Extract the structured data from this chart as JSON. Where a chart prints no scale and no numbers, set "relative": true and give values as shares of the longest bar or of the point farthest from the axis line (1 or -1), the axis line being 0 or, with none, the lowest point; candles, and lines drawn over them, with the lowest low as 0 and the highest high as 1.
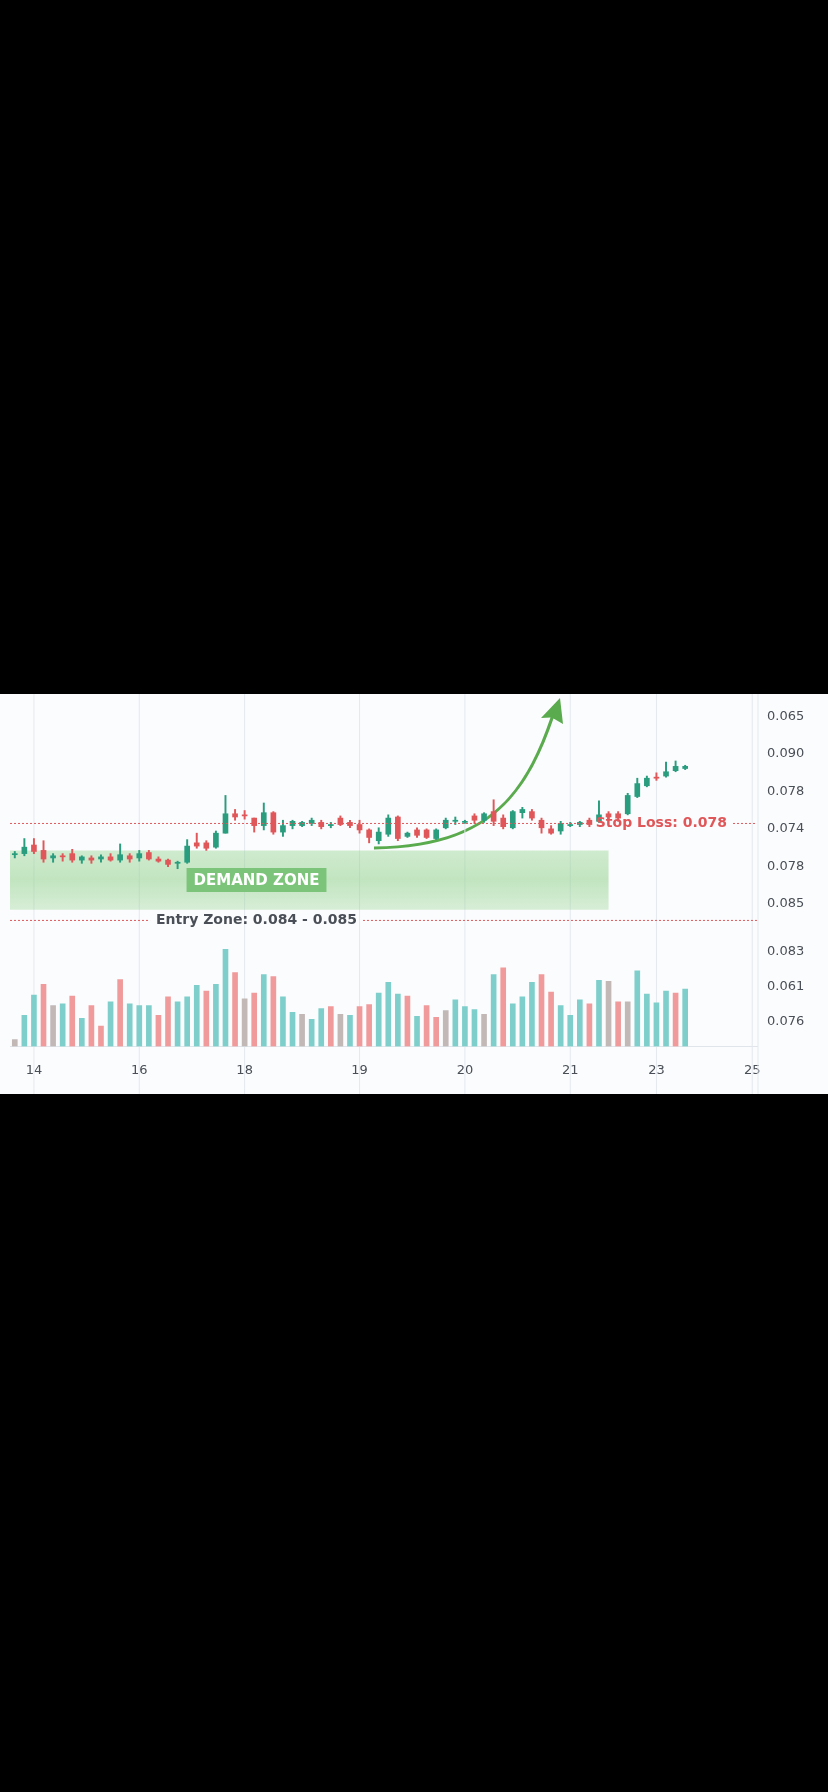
{
  "chart_data": [
    {
      "type": "candlestick",
      "relative": true,
      "tick_labels": false,
      "grid": "x",
      "categories": [
        null,
        null,
        "14",
        null,
        null,
        null,
        null,
        null,
        null,
        null,
        null,
        null,
        null,
        "16",
        null,
        null,
        null,
        null,
        null,
        null,
        null,
        null,
        null,
        null,
        "18",
        null,
        null,
        null,
        null,
        null,
        null,
        null,
        null,
        null,
        null,
        null,
        "19",
        null,
        null,
        null,
        null,
        null,
        null,
        null,
        null,
        null,
        null,
        "20",
        null,
        null,
        null,
        null,
        null,
        null,
        null,
        null,
        null,
        null,
        "21",
        null,
        null,
        null,
        null,
        null,
        null,
        null,
        null,
        "23",
        null,
        null,
        null,
        null,
        null,
        null,
        null,
        null,
        null,
        "25"
      ],
      "ohlc": [
        [
          0.13,
          0.16,
          0.1,
          0.14
        ],
        [
          0.14,
          0.28,
          0.12,
          0.2
        ],
        [
          0.22,
          0.28,
          0.14,
          0.16
        ],
        [
          0.17,
          0.26,
          0.06,
          0.09
        ],
        [
          0.1,
          0.14,
          0.06,
          0.12
        ],
        [
          0.12,
          0.14,
          0.07,
          0.11
        ],
        [
          0.14,
          0.18,
          0.06,
          0.08
        ],
        [
          0.08,
          0.12,
          0.05,
          0.11
        ],
        [
          0.1,
          0.12,
          0.05,
          0.08
        ],
        [
          0.09,
          0.13,
          0.06,
          0.11
        ],
        [
          0.11,
          0.14,
          0.07,
          0.08
        ],
        [
          0.08,
          0.23,
          0.06,
          0.13
        ],
        [
          0.12,
          0.14,
          0.06,
          0.09
        ],
        [
          0.1,
          0.17,
          0.07,
          0.14
        ],
        [
          0.15,
          0.17,
          0.08,
          0.09
        ],
        [
          0.09,
          0.11,
          0.06,
          0.07
        ],
        [
          0.08,
          0.09,
          0.02,
          0.04
        ],
        [
          0.05,
          0.07,
          0.0,
          0.06
        ],
        [
          0.06,
          0.27,
          0.05,
          0.21
        ],
        [
          0.24,
          0.33,
          0.19,
          0.21
        ],
        [
          0.24,
          0.26,
          0.17,
          0.19
        ],
        [
          0.2,
          0.35,
          0.19,
          0.33
        ],
        [
          0.33,
          0.68,
          0.33,
          0.51
        ],
        [
          0.51,
          0.55,
          0.45,
          0.48
        ],
        [
          0.5,
          0.54,
          0.46,
          0.49
        ],
        [
          0.47,
          0.47,
          0.34,
          0.4
        ],
        [
          0.4,
          0.61,
          0.36,
          0.52
        ],
        [
          0.52,
          0.53,
          0.32,
          0.34
        ],
        [
          0.34,
          0.45,
          0.3,
          0.4
        ],
        [
          0.4,
          0.45,
          0.37,
          0.44
        ],
        [
          0.4,
          0.44,
          0.39,
          0.43
        ],
        [
          0.42,
          0.47,
          0.4,
          0.45
        ],
        [
          0.43,
          0.45,
          0.37,
          0.39
        ],
        [
          0.4,
          0.43,
          0.38,
          0.41
        ],
        [
          0.47,
          0.49,
          0.4,
          0.41
        ],
        [
          0.43,
          0.45,
          0.38,
          0.4
        ],
        [
          0.41,
          0.45,
          0.33,
          0.36
        ],
        [
          0.36,
          0.37,
          0.24,
          0.29
        ],
        [
          0.26,
          0.38,
          0.23,
          0.34
        ],
        [
          0.32,
          0.5,
          0.3,
          0.47
        ],
        [
          0.48,
          0.49,
          0.26,
          0.28
        ],
        [
          0.3,
          0.34,
          0.29,
          0.33
        ],
        [
          0.36,
          0.38,
          0.29,
          0.31
        ],
        [
          0.36,
          0.37,
          0.28,
          0.29
        ],
        [
          0.28,
          0.37,
          0.27,
          0.36
        ],
        [
          0.38,
          0.47,
          0.37,
          0.45
        ],
        [
          0.44,
          0.48,
          0.41,
          0.45
        ],
        [
          0.43,
          0.45,
          0.42,
          0.44
        ],
        [
          0.49,
          0.51,
          0.42,
          0.45
        ],
        [
          0.45,
          0.52,
          0.43,
          0.51
        ],
        [
          0.53,
          0.64,
          0.4,
          0.44
        ],
        [
          0.47,
          0.5,
          0.37,
          0.39
        ],
        [
          0.38,
          0.54,
          0.37,
          0.53
        ],
        [
          0.52,
          0.57,
          0.47,
          0.55
        ],
        [
          0.53,
          0.55,
          0.45,
          0.47
        ],
        [
          0.45,
          0.47,
          0.33,
          0.38
        ],
        [
          0.37,
          0.4,
          0.32,
          0.33
        ],
        [
          0.35,
          0.44,
          0.32,
          0.42
        ],
        [
          0.4,
          0.43,
          0.39,
          0.41
        ],
        [
          0.41,
          0.44,
          0.39,
          0.43
        ],
        [
          0.45,
          0.47,
          0.39,
          0.41
        ],
        [
          0.44,
          0.63,
          0.43,
          0.5
        ],
        [
          0.51,
          0.53,
          0.46,
          0.48
        ],
        [
          0.51,
          0.53,
          0.44,
          0.47
        ],
        [
          0.51,
          0.7,
          0.5,
          0.68
        ],
        [
          0.67,
          0.84,
          0.66,
          0.79
        ],
        [
          0.77,
          0.86,
          0.76,
          0.84
        ],
        [
          0.85,
          0.89,
          0.82,
          0.84
        ],
        [
          0.86,
          0.99,
          0.85,
          0.9
        ],
        [
          0.91,
          1.0,
          0.9,
          0.95
        ],
        [
          0.93,
          0.96,
          0.92,
          0.95
        ],
        null,
        null,
        null,
        null,
        null,
        null,
        null
      ],
      "ref_lines": [
        {
          "axis": "y",
          "value": 0.42,
          "color": "#e0575a",
          "line_style": "dotted"
        },
        {
          "axis": "y",
          "value": -0.48,
          "color": "#e0575a",
          "line_style": "dotted"
        }
      ],
      "bands": [
        {
          "axis": "y",
          "from": -0.38,
          "to": 0.17,
          "label": "DEMAND ZONE",
          "color": "#8fd18a"
        }
      ],
      "annotations": [
        "Stop Loss: 0.078",
        "Entry Zone: 0.084 - 0.085",
        "0.065",
        "0.090",
        "0.078",
        "0.074",
        "0.078",
        "0.085"
      ]
    },
    {
      "type": "bar",
      "relative": true,
      "tick_labels": "x",
      "grid": "x",
      "categories": [
        null,
        null,
        "14",
        null,
        null,
        null,
        null,
        null,
        null,
        null,
        null,
        null,
        null,
        "16",
        null,
        null,
        null,
        null,
        null,
        null,
        null,
        null,
        null,
        null,
        "18",
        null,
        null,
        null,
        null,
        null,
        null,
        null,
        null,
        null,
        null,
        null,
        "19",
        null,
        null,
        null,
        null,
        null,
        null,
        null,
        null,
        null,
        null,
        "20",
        null,
        null,
        null,
        null,
        null,
        null,
        null,
        null,
        null,
        null,
        "21",
        null,
        null,
        null,
        null,
        null,
        null,
        null,
        null,
        "23",
        null,
        null,
        null,
        null,
        null,
        null,
        null,
        null,
        null,
        "25"
      ],
      "values": [
        0.07,
        0.32,
        0.53,
        0.64,
        0.42,
        0.44,
        0.52,
        0.29,
        0.42,
        0.21,
        0.46,
        0.69,
        0.44,
        0.42,
        0.42,
        0.32,
        0.51,
        0.46,
        0.51,
        0.63,
        0.57,
        0.64,
        1.0,
        0.76,
        0.49,
        0.55,
        0.74,
        0.72,
        0.51,
        0.35,
        0.33,
        0.28,
        0.39,
        0.41,
        0.33,
        0.32,
        0.41,
        0.43,
        0.55,
        0.66,
        0.54,
        0.52,
        0.31,
        0.42,
        0.3,
        0.37,
        0.48,
        0.41,
        0.38,
        0.33,
        0.74,
        0.81,
        0.44,
        0.51,
        0.66,
        0.74,
        0.56,
        0.42,
        0.32,
        0.48,
        0.44,
        0.68,
        0.67,
        0.46,
        0.46,
        0.78,
        0.54,
        0.45,
        0.57,
        0.55,
        0.59,
        null,
        null,
        null,
        null,
        null,
        null,
        null
      ],
      "colors": [
        "#c2b9b7",
        "#7ecfcb",
        "#7ecfcb",
        "#f09a9b",
        "#c2b9b7",
        "#7ecfcb",
        "#f09a9b",
        "#7ecfcb",
        "#f09a9b",
        "#f09a9b",
        "#7ecfcb",
        "#f09a9b",
        "#7ecfcb",
        "#7ecfcb",
        "#7ecfcb",
        "#f09a9b",
        "#f09a9b",
        "#7ecfcb",
        "#7ecfcb",
        "#7ecfcb",
        "#f09a9b",
        "#7ecfcb",
        "#7ecfcb",
        "#f09a9b",
        "#c2b9b7",
        "#f09a9b",
        "#7ecfcb",
        "#f09a9b",
        "#7ecfcb",
        "#7ecfcb",
        "#c2b9b7",
        "#7ecfcb",
        "#7ecfcb",
        "#f09a9b",
        "#c2b9b7",
        "#7ecfcb",
        "#f09a9b",
        "#f09a9b",
        "#7ecfcb",
        "#7ecfcb",
        "#7ecfcb",
        "#f09a9b",
        "#7ecfcb",
        "#f09a9b",
        "#f09a9b",
        "#c2b9b7",
        "#7ecfcb",
        "#7ecfcb",
        "#7ecfcb",
        "#c2b9b7",
        "#7ecfcb",
        "#f09a9b",
        "#7ecfcb",
        "#7ecfcb",
        "#7ecfcb",
        "#f09a9b",
        "#f09a9b",
        "#7ecfcb",
        "#7ecfcb",
        "#7ecfcb",
        "#f09a9b",
        "#7ecfcb",
        "#c2b9b7",
        "#f09a9b",
        "#c2b9b7",
        "#7ecfcb",
        "#7ecfcb",
        "#7ecfcb",
        "#7ecfcb",
        "#f09a9b",
        "#7ecfcb",
        null,
        null,
        null,
        null,
        null,
        null,
        null
      ],
      "annotations": [
        "0.083",
        "0.061",
        "0.076"
      ]
    }
  ]
}
